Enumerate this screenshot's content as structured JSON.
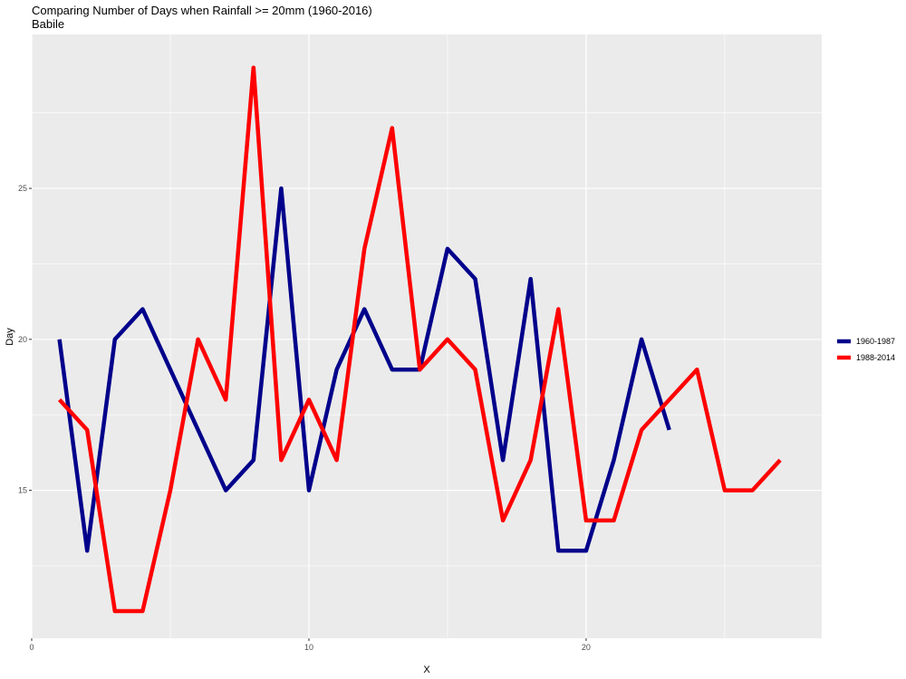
{
  "chart_data": {
    "type": "line",
    "title": "Comparing Number of Days when Rainfall >= 20mm (1960-2016)",
    "subtitle": "Babile",
    "xlabel": "X",
    "ylabel": "Day",
    "xlim": [
      0,
      28.5
    ],
    "ylim": [
      10.1,
      30.1
    ],
    "x_ticks": [
      0,
      10,
      20
    ],
    "y_ticks": [
      15,
      20,
      25
    ],
    "grid": true,
    "legend_position": "right",
    "series": [
      {
        "name": "1960-1987",
        "color": "#00008b",
        "x": [
          1,
          2,
          3,
          4,
          5,
          6,
          7,
          8,
          9,
          10,
          11,
          12,
          13,
          14,
          15,
          16,
          17,
          18,
          19,
          20,
          21,
          22,
          23
        ],
        "values": [
          20,
          13,
          20,
          21,
          19,
          17,
          15,
          16,
          25,
          15,
          19,
          21,
          19,
          19,
          23,
          22,
          16,
          22,
          13,
          13,
          16,
          20,
          17
        ]
      },
      {
        "name": "1988-2014",
        "color": "#ff0000",
        "x": [
          1,
          2,
          3,
          4,
          5,
          6,
          7,
          8,
          9,
          10,
          11,
          12,
          13,
          14,
          15,
          16,
          17,
          18,
          19,
          20,
          21,
          22,
          23,
          24,
          25,
          26,
          27
        ],
        "values": [
          18,
          17,
          11,
          11,
          15,
          20,
          18,
          29,
          16,
          18,
          16,
          23,
          27,
          19,
          20,
          19,
          14,
          16,
          21,
          14,
          14,
          17,
          18,
          19,
          15,
          15,
          16
        ]
      }
    ]
  }
}
